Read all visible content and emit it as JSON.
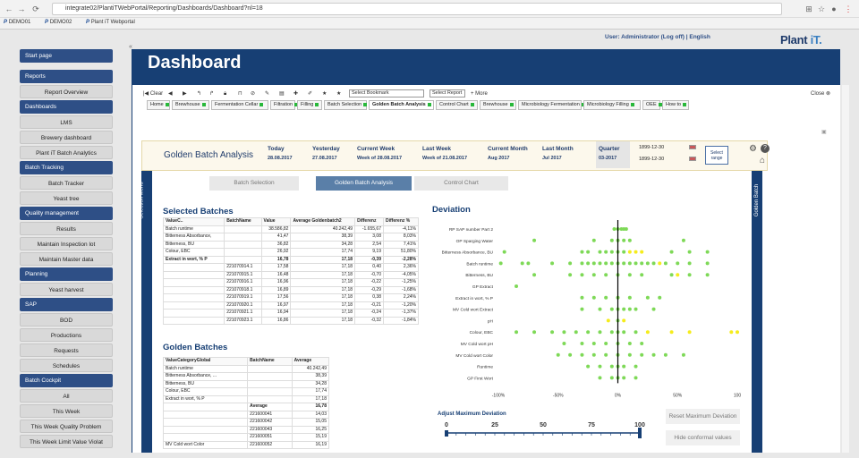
{
  "browser": {
    "url": "integrate02/PlantiTWebPortal/Reporting/Dashboards/Dashboard?nl=18",
    "bookmarks": [
      "DEMO01",
      "DEMO02",
      "Plant iT Webportal"
    ]
  },
  "header": {
    "user": "User: Administrator (Log off)  |  English",
    "brand": "Plant",
    "brand_accent": "iT.",
    "title": "Dashboard"
  },
  "sidebar": [
    {
      "label": "Start page",
      "kind": "head"
    },
    {
      "label": "Reports",
      "kind": "head"
    },
    {
      "label": "Report Overview",
      "kind": "item"
    },
    {
      "label": "Dashboards",
      "kind": "head"
    },
    {
      "label": "LMS",
      "kind": "item"
    },
    {
      "label": "Brewery dashboard",
      "kind": "item"
    },
    {
      "label": "Plant iT Batch Analytics",
      "kind": "item"
    },
    {
      "label": "Batch Tracking",
      "kind": "head"
    },
    {
      "label": "Batch Tracker",
      "kind": "item"
    },
    {
      "label": "Yeast tree",
      "kind": "item"
    },
    {
      "label": "Quality management",
      "kind": "head"
    },
    {
      "label": "Results",
      "kind": "item"
    },
    {
      "label": "Maintain Inspection lot",
      "kind": "item"
    },
    {
      "label": "Maintain Master data",
      "kind": "item"
    },
    {
      "label": "Planning",
      "kind": "head"
    },
    {
      "label": "Yeast harvest",
      "kind": "item"
    },
    {
      "label": "SAP",
      "kind": "head"
    },
    {
      "label": "BOD",
      "kind": "item"
    },
    {
      "label": "Productions",
      "kind": "item"
    },
    {
      "label": "Requests",
      "kind": "item"
    },
    {
      "label": "Schedules",
      "kind": "item"
    },
    {
      "label": "Batch Cockpit",
      "kind": "head"
    },
    {
      "label": "All",
      "kind": "item"
    },
    {
      "label": "This Week",
      "kind": "item"
    },
    {
      "label": "This Week Quality Problem",
      "kind": "item"
    },
    {
      "label": "This Week Limit Value Violat",
      "kind": "item"
    }
  ],
  "toolbar": {
    "clear": "Clear",
    "bookmark_select": "Select Bookmark",
    "report_select": "Select Report",
    "more": "More",
    "close": "Close"
  },
  "tabs": [
    {
      "label": "Home"
    },
    {
      "label": "Brewhouse"
    },
    {
      "label": "Fermentation Cellar"
    },
    {
      "label": "Filtration"
    },
    {
      "label": "Filling"
    },
    {
      "label": "Batch Selection"
    },
    {
      "label": "Golden Batch Analysis"
    },
    {
      "label": "Control Chart"
    },
    {
      "label": "Brewhouse"
    },
    {
      "label": "Microbiology Fermentation"
    },
    {
      "label": "Microbiology Filling"
    },
    {
      "label": "OEE"
    },
    {
      "label": "How to"
    }
  ],
  "period": {
    "title": "Golden Batch Analysis",
    "items": [
      {
        "label": "Today",
        "value": "28.08.2017"
      },
      {
        "label": "Yesterday",
        "value": "27.08.2017"
      },
      {
        "label": "Current Week",
        "value": "Week of 28.08.2017"
      },
      {
        "label": "Last Week",
        "value": "Week of 21.08.2017"
      },
      {
        "label": "Current Month",
        "value": "Aug 2017"
      },
      {
        "label": "Last Month",
        "value": "Jul 2017"
      },
      {
        "label": "Quarter",
        "value": "03-2017"
      }
    ],
    "date_from": "1899-12-30",
    "date_to": "1899-12-30",
    "select_range": "Select range"
  },
  "subtabs": [
    "Batch Selection",
    "Golden Batch Analysis",
    "Control Chart"
  ],
  "side_labels": {
    "left": "Selection Menu",
    "right": "Golden Batch"
  },
  "selected_batches": {
    "title": "Selected Batches",
    "columns": [
      "ValueC..",
      "BatchName",
      "Value",
      "Average Goldenbatch2",
      "Differenz",
      "Differenz %"
    ],
    "rows": [
      [
        "Batch runtime",
        "",
        "38.586,82",
        "40.242,49",
        "-1.655,67",
        "-4,11%"
      ],
      [
        "Bitterness Absorbance,",
        "",
        "41,47",
        "38,39",
        "3,08",
        "8,03%"
      ],
      [
        "Bitterness, BU",
        "",
        "36,82",
        "34,28",
        "2,54",
        "7,41%"
      ],
      [
        "Colour, EBC",
        "",
        "26,92",
        "17,74",
        "9,19",
        "51,80%"
      ],
      [
        "Extract in wort, % P",
        "",
        "16,78",
        "17,18",
        "-0,39",
        "-2,28%"
      ],
      [
        "",
        "221070914.1",
        "17,58",
        "17,18",
        "0,40",
        "2,36%"
      ],
      [
        "",
        "221070915.1",
        "16,48",
        "17,18",
        "-0,70",
        "-4,05%"
      ],
      [
        "",
        "221070916.1",
        "16,96",
        "17,18",
        "-0,22",
        "-1,25%"
      ],
      [
        "",
        "221070918.1",
        "16,89",
        "17,18",
        "-0,29",
        "-1,68%"
      ],
      [
        "",
        "221070919.1",
        "17,56",
        "17,18",
        "0,38",
        "2,24%"
      ],
      [
        "",
        "221070920.1",
        "16,97",
        "17,18",
        "-0,21",
        "-1,20%"
      ],
      [
        "",
        "221070921.1",
        "16,94",
        "17,18",
        "-0,24",
        "-1,37%"
      ],
      [
        "",
        "221070923.1",
        "16,86",
        "17,18",
        "-0,32",
        "-1,84%"
      ]
    ]
  },
  "golden_batches": {
    "title": "Golden Batches",
    "columns": [
      "ValueCategoryGlobal",
      "BatchName",
      "Average"
    ],
    "rows": [
      [
        "Batch runtime",
        "",
        "40.242,49"
      ],
      [
        "Bitterness Absorbance, ...",
        "",
        "38,39"
      ],
      [
        "Bitterness, BU",
        "",
        "34,28"
      ],
      [
        "Colour, EBC",
        "",
        "17,74"
      ],
      [
        "Extract in wort, % P",
        "",
        "17,18"
      ],
      [
        "",
        "Average",
        "16,78"
      ],
      [
        "",
        "221600041",
        "14,03"
      ],
      [
        "",
        "221600042",
        "15,05"
      ],
      [
        "",
        "221600043",
        "16,25"
      ],
      [
        "",
        "221600051",
        "15,19"
      ],
      [
        "MV Cold wort Color",
        "221600052",
        "16,19"
      ]
    ]
  },
  "deviation": {
    "title": "Deviation",
    "adjust_title": "Adjust Maximum Deviation",
    "reset_button": "Reset Maximum Deviation",
    "hide_button": "Hide conformal values"
  },
  "chart_data": {
    "type": "scatter",
    "title": "Deviation",
    "categories": [
      "RP SAP number Part 2",
      "OP Sparging Water",
      "Bitterness Absorbance, BU",
      "Batch runtime",
      "Bitterness, BU",
      "GP Extract",
      "Extract in wort, % P",
      "MV Cold wort Extract",
      "pH",
      "Colour, EBC",
      "MV Cold wort pH",
      "MV Cold wort Color",
      "Runtime",
      "GP First Wort"
    ],
    "x_ticks": [
      "-100%",
      "-50%",
      "0%",
      "50%",
      "100"
    ],
    "xlim": [
      -100,
      100
    ],
    "series": [
      {
        "name": "within",
        "color": "#7ed957",
        "points": [
          [
            0,
            -3
          ],
          [
            0,
            0
          ],
          [
            0,
            3
          ],
          [
            0,
            5
          ],
          [
            0,
            7
          ],
          [
            1,
            -70
          ],
          [
            1,
            -20
          ],
          [
            1,
            -5
          ],
          [
            1,
            0
          ],
          [
            1,
            5
          ],
          [
            1,
            10
          ],
          [
            1,
            55
          ],
          [
            2,
            -95
          ],
          [
            2,
            -30
          ],
          [
            2,
            -25
          ],
          [
            2,
            -15
          ],
          [
            2,
            -10
          ],
          [
            2,
            -5
          ],
          [
            2,
            0
          ],
          [
            2,
            5
          ],
          [
            2,
            45
          ],
          [
            2,
            60
          ],
          [
            2,
            75
          ],
          [
            3,
            -98
          ],
          [
            3,
            -80
          ],
          [
            3,
            -75
          ],
          [
            3,
            -55
          ],
          [
            3,
            -40
          ],
          [
            3,
            -30
          ],
          [
            3,
            -25
          ],
          [
            3,
            -20
          ],
          [
            3,
            -15
          ],
          [
            3,
            -10
          ],
          [
            3,
            -5
          ],
          [
            3,
            0
          ],
          [
            3,
            5
          ],
          [
            3,
            10
          ],
          [
            3,
            15
          ],
          [
            3,
            20
          ],
          [
            3,
            25
          ],
          [
            3,
            30
          ],
          [
            3,
            40
          ],
          [
            3,
            50
          ],
          [
            3,
            60
          ],
          [
            3,
            75
          ],
          [
            4,
            -70
          ],
          [
            4,
            -40
          ],
          [
            4,
            -30
          ],
          [
            4,
            -20
          ],
          [
            4,
            -10
          ],
          [
            4,
            0
          ],
          [
            4,
            10
          ],
          [
            4,
            20
          ],
          [
            4,
            45
          ],
          [
            4,
            60
          ],
          [
            4,
            75
          ],
          [
            5,
            -85
          ],
          [
            6,
            -30
          ],
          [
            6,
            -20
          ],
          [
            6,
            -10
          ],
          [
            6,
            0
          ],
          [
            6,
            10
          ],
          [
            6,
            25
          ],
          [
            6,
            35
          ],
          [
            7,
            -30
          ],
          [
            7,
            -15
          ],
          [
            7,
            -5
          ],
          [
            7,
            0
          ],
          [
            7,
            5
          ],
          [
            7,
            10
          ],
          [
            7,
            15
          ],
          [
            7,
            30
          ],
          [
            8,
            0
          ],
          [
            9,
            -85
          ],
          [
            9,
            -70
          ],
          [
            9,
            -55
          ],
          [
            9,
            -45
          ],
          [
            9,
            -35
          ],
          [
            9,
            -25
          ],
          [
            9,
            -15
          ],
          [
            9,
            -5
          ],
          [
            9,
            0
          ],
          [
            9,
            5
          ],
          [
            9,
            15
          ],
          [
            10,
            -45
          ],
          [
            10,
            -30
          ],
          [
            10,
            -20
          ],
          [
            10,
            -10
          ],
          [
            10,
            0
          ],
          [
            10,
            10
          ],
          [
            10,
            20
          ],
          [
            11,
            -50
          ],
          [
            11,
            -40
          ],
          [
            11,
            -30
          ],
          [
            11,
            -20
          ],
          [
            11,
            -10
          ],
          [
            11,
            0
          ],
          [
            11,
            10
          ],
          [
            11,
            20
          ],
          [
            11,
            30
          ],
          [
            11,
            40
          ],
          [
            11,
            55
          ],
          [
            12,
            -25
          ],
          [
            12,
            -15
          ],
          [
            12,
            -5
          ],
          [
            12,
            0
          ],
          [
            12,
            5
          ],
          [
            12,
            15
          ],
          [
            13,
            -15
          ],
          [
            13,
            -5
          ],
          [
            13,
            0
          ],
          [
            13,
            5
          ],
          [
            13,
            15
          ]
        ]
      },
      {
        "name": "outside",
        "color": "#f5ec1c",
        "points": [
          [
            2,
            10
          ],
          [
            2,
            15
          ],
          [
            2,
            20
          ],
          [
            3,
            35
          ],
          [
            4,
            50
          ],
          [
            8,
            -8
          ],
          [
            8,
            5
          ],
          [
            9,
            25
          ],
          [
            9,
            45
          ],
          [
            9,
            60
          ],
          [
            9,
            95
          ],
          [
            9,
            100
          ]
        ]
      }
    ]
  },
  "slider": {
    "ticks": [
      "0",
      "25",
      "50",
      "75",
      "100"
    ],
    "value": 100
  }
}
